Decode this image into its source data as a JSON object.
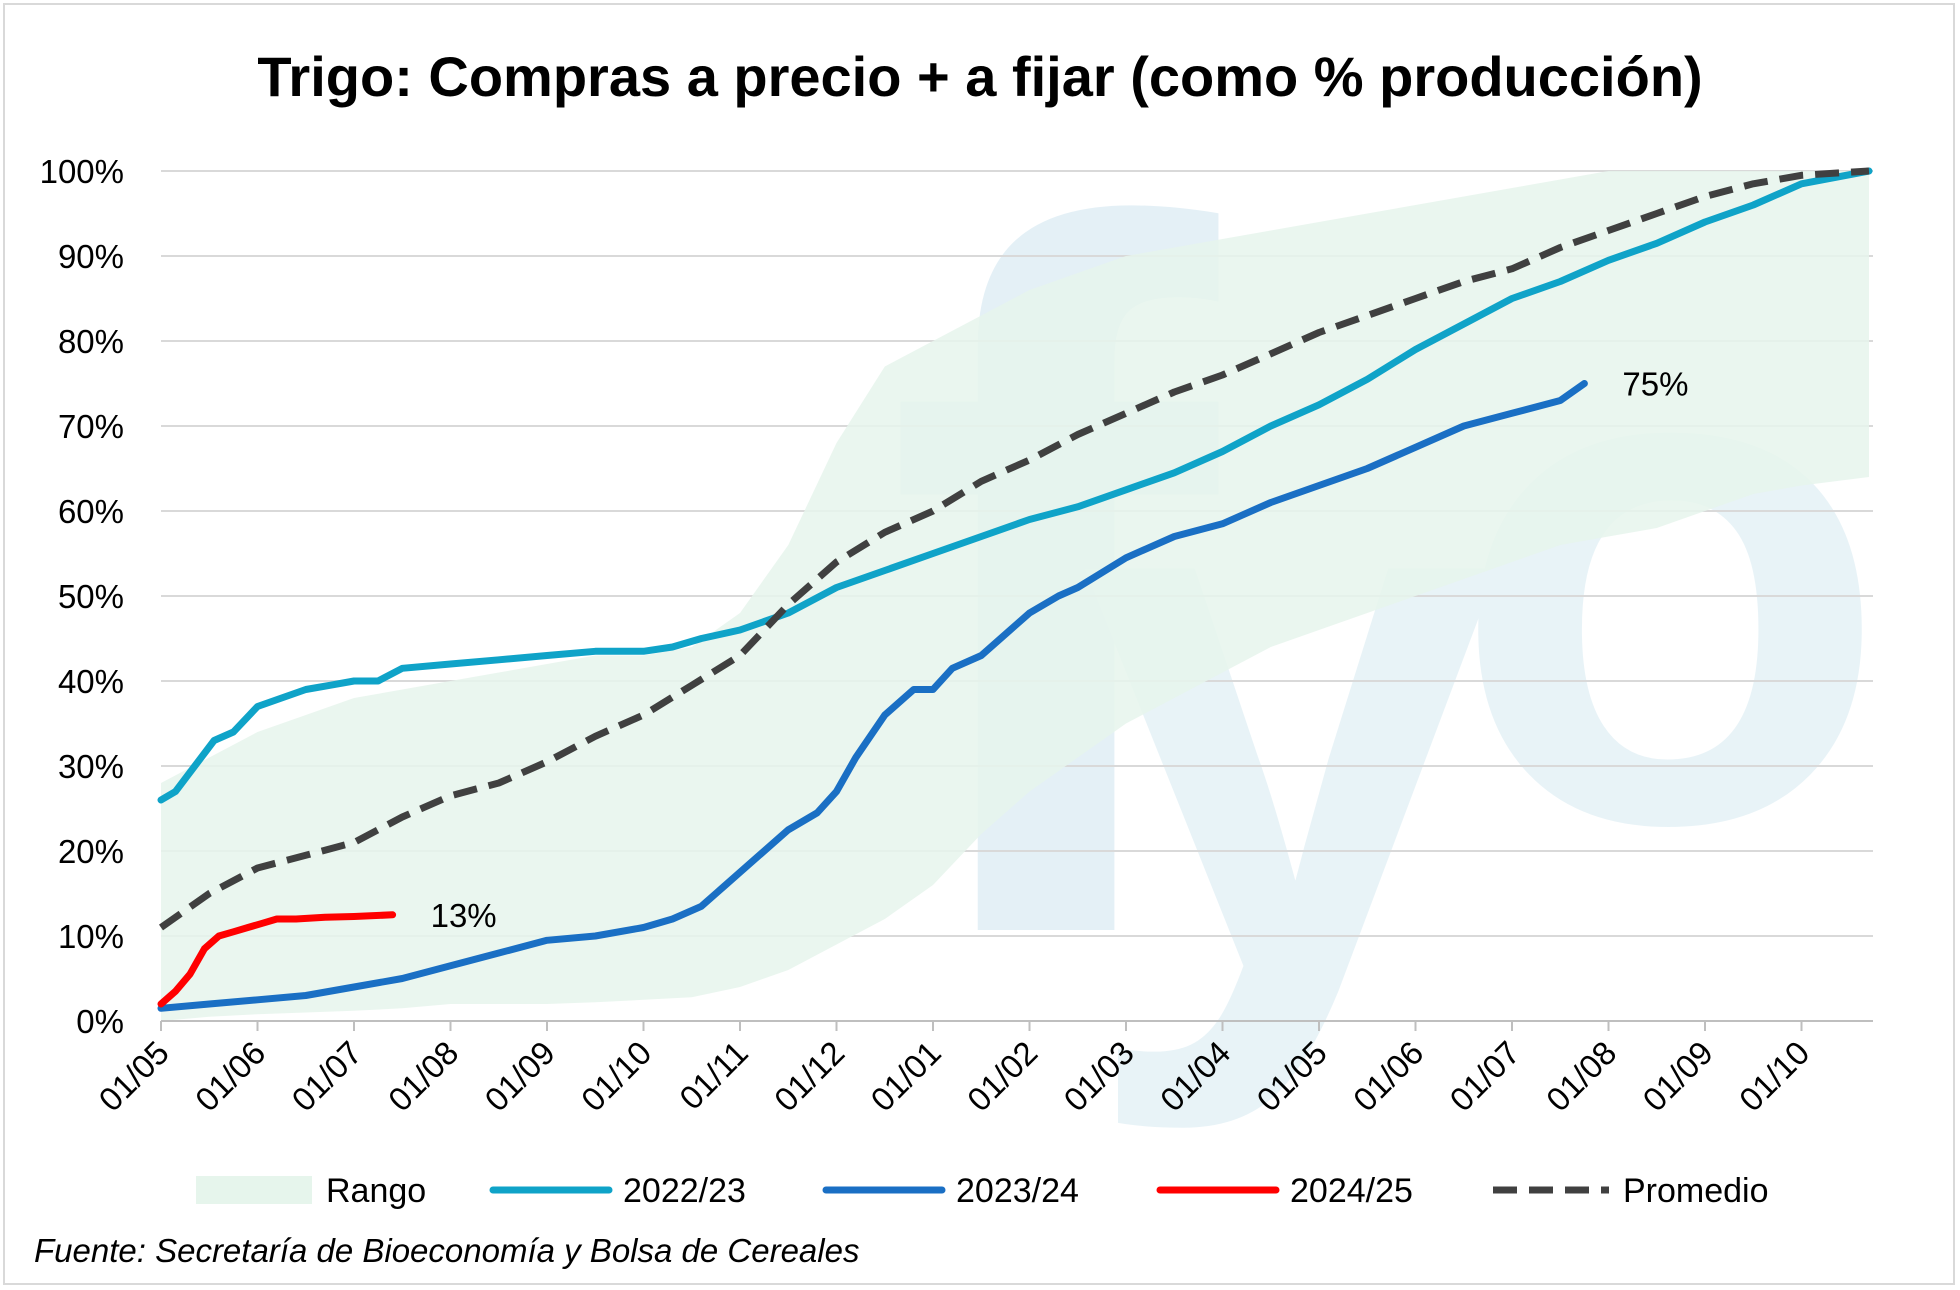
{
  "chart_data": {
    "type": "line",
    "title": "Trigo: Compras a precio + a fijar (como % producción)",
    "xlabel": "",
    "ylabel": "",
    "ylim": [
      0,
      100
    ],
    "y_ticks": [
      "0%",
      "10%",
      "20%",
      "30%",
      "40%",
      "50%",
      "60%",
      "70%",
      "80%",
      "90%",
      "100%"
    ],
    "x_ticks": [
      "01/05",
      "01/06",
      "01/07",
      "01/08",
      "01/09",
      "01/10",
      "01/11",
      "01/12",
      "01/01",
      "01/02",
      "01/03",
      "01/04",
      "01/05",
      "01/06",
      "01/07",
      "01/08",
      "01/09",
      "01/10"
    ],
    "x_range_months": [
      0,
      17.7
    ],
    "grid": true,
    "legend_position": "bottom",
    "range": {
      "name": "Rango",
      "color": "#e6f5ec",
      "x": [
        0,
        0.5,
        1,
        1.5,
        2,
        2.5,
        3,
        3.5,
        4,
        4.5,
        5,
        5.5,
        6,
        6.5,
        7,
        7.5,
        8,
        8.5,
        9,
        9.5,
        10,
        10.5,
        11,
        11.5,
        12,
        12.5,
        13,
        13.5,
        14,
        14.5,
        15,
        15.5,
        16,
        16.5,
        17,
        17.7
      ],
      "lower": [
        0,
        0.5,
        0.8,
        1,
        1.2,
        1.5,
        2,
        2,
        2,
        2.2,
        2.5,
        2.8,
        4,
        6,
        9,
        12,
        16,
        22,
        27,
        31,
        35,
        38,
        41,
        44,
        46,
        48,
        50,
        52,
        54,
        56,
        57,
        58,
        60,
        62,
        63,
        64
      ],
      "upper": [
        28,
        31,
        34,
        36,
        38,
        39,
        40,
        41,
        42,
        43,
        43,
        44,
        48,
        56,
        68,
        77,
        80,
        83,
        86,
        88,
        90,
        91,
        92,
        93,
        94,
        95,
        96,
        97,
        98,
        99,
        100,
        100,
        100,
        100,
        100,
        100
      ]
    },
    "series": [
      {
        "name": "2022/23",
        "color": "#0fa3c8",
        "x": [
          0,
          0.15,
          0.35,
          0.55,
          0.75,
          1,
          1.25,
          1.5,
          1.75,
          2,
          2.25,
          2.5,
          3,
          3.5,
          4,
          4.5,
          5,
          5.3,
          5.6,
          6,
          6.5,
          7,
          7.5,
          8,
          8.5,
          9,
          9.5,
          10,
          10.5,
          11,
          11.5,
          12,
          12.5,
          13,
          13.5,
          14,
          14.5,
          15,
          15.5,
          16,
          16.5,
          17,
          17.7
        ],
        "y": [
          26,
          27,
          30,
          33,
          34,
          37,
          38,
          39,
          39.5,
          40,
          40,
          41.5,
          42,
          42.5,
          43,
          43.5,
          43.5,
          44,
          45,
          46,
          48,
          51,
          53,
          55,
          57,
          59,
          60.5,
          62.5,
          64.5,
          67,
          70,
          72.5,
          75.5,
          79,
          82,
          85,
          87,
          89.5,
          91.5,
          94,
          96,
          98.5,
          100
        ]
      },
      {
        "name": "2023/24",
        "color": "#1a6fc4",
        "x": [
          0,
          0.5,
          1,
          1.5,
          2,
          2.5,
          3,
          3.5,
          4,
          4.5,
          5,
          5.3,
          5.6,
          5.8,
          6,
          6.2,
          6.5,
          6.8,
          7,
          7.2,
          7.5,
          7.8,
          8,
          8.2,
          8.5,
          8.8,
          9,
          9.3,
          9.5,
          10,
          10.5,
          11,
          11.5,
          12,
          12.5,
          13,
          13.5,
          14,
          14.5,
          14.75
        ],
        "y": [
          1.5,
          2,
          2.5,
          3,
          4,
          5,
          6.5,
          8,
          9.5,
          10,
          11,
          12,
          13.5,
          15.5,
          17.5,
          19.5,
          22.5,
          24.5,
          27,
          31,
          36,
          39,
          39,
          41.5,
          43,
          46,
          48,
          50,
          51,
          54.5,
          57,
          58.5,
          61,
          63,
          65,
          67.5,
          70,
          71.5,
          73,
          75
        ]
      },
      {
        "name": "2024/25",
        "color": "#ff0000",
        "x": [
          0,
          0.15,
          0.3,
          0.45,
          0.6,
          0.75,
          0.9,
          1.05,
          1.2,
          1.4,
          1.7,
          2,
          2.4
        ],
        "y": [
          2,
          3.5,
          5.5,
          8.5,
          10,
          10.5,
          11,
          11.5,
          12,
          12,
          12.2,
          12.3,
          12.5
        ]
      },
      {
        "name": "Promedio",
        "color": "#404040",
        "dashed": true,
        "x": [
          0,
          0.5,
          1,
          1.5,
          2,
          2.5,
          3,
          3.5,
          4,
          4.5,
          5,
          5.5,
          6,
          6.5,
          7,
          7.5,
          8,
          8.5,
          9,
          9.5,
          10,
          10.5,
          11,
          11.5,
          12,
          12.5,
          13,
          13.5,
          14,
          14.5,
          15,
          15.5,
          16,
          16.5,
          17,
          17.7
        ],
        "y": [
          11,
          15,
          18,
          19.5,
          21,
          24,
          26.5,
          28,
          30.5,
          33.5,
          36,
          39.5,
          43,
          49,
          54,
          57.5,
          60,
          63.5,
          66,
          69,
          71.5,
          74,
          76,
          78.5,
          81,
          83,
          85,
          87,
          88.5,
          91,
          93,
          95,
          97,
          98.5,
          99.5,
          100
        ]
      }
    ],
    "annotations": [
      {
        "series": "2024/25",
        "text": "13%"
      },
      {
        "series": "2023/24",
        "text": "75%"
      }
    ],
    "legend": [
      {
        "label": "Rango",
        "kind": "area",
        "color": "#e6f5ec"
      },
      {
        "label": "2022/23",
        "kind": "line",
        "color": "#0fa3c8"
      },
      {
        "label": "2023/24",
        "kind": "line",
        "color": "#1a6fc4"
      },
      {
        "label": "2024/25",
        "kind": "line",
        "color": "#ff0000"
      },
      {
        "label": "Promedio",
        "kind": "dash",
        "color": "#404040"
      }
    ],
    "watermark": "fyo"
  },
  "source_note": "Fuente: Secretaría de Bioeconomía y Bolsa de Cereales"
}
